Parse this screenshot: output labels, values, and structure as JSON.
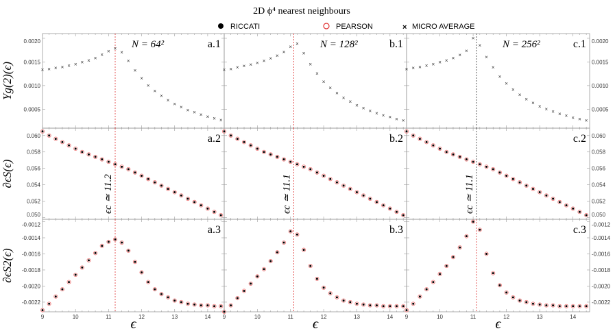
{
  "chart_data": {
    "type": "scatter",
    "title": "2D ϕ⁴ nearest neighbours",
    "legend": [
      {
        "name": "RICCATI",
        "marker": "filled-circle",
        "color": "#000000"
      },
      {
        "name": "PEARSON",
        "marker": "open-circle",
        "color": "#e03030"
      },
      {
        "name": "MICRO AVERAGE",
        "marker": "cross",
        "color": "#000000"
      }
    ],
    "legend_placement": "top",
    "xlabel": "ϵ",
    "xlim": [
      9,
      14.5
    ],
    "xticks": [
      "9",
      "10",
      "11",
      "12",
      "13",
      "14"
    ],
    "x": [
      9.0,
      9.2,
      9.4,
      9.6,
      9.8,
      10.0,
      10.2,
      10.4,
      10.6,
      10.8,
      11.0,
      11.2,
      11.4,
      11.6,
      11.8,
      12.0,
      12.2,
      12.4,
      12.6,
      12.8,
      13.0,
      13.2,
      13.4,
      13.6,
      13.8,
      14.0,
      14.2,
      14.4
    ],
    "columns": [
      {
        "size_label": "N = 64²",
        "critical": 11.2,
        "critical_label": "ϵc ≃ 11.2"
      },
      {
        "size_label": "N = 128²",
        "critical": 11.1,
        "critical_label": "ϵc ≃ 11.1"
      },
      {
        "size_label": "N = 256²",
        "critical": 11.1,
        "critical_label": "ϵc ≃ 11.1"
      }
    ],
    "rows": [
      {
        "ylabel": "Υg(2)(ϵ)",
        "ylim": [
          0.0001,
          0.0021
        ],
        "yticks": [
          "0.0005",
          "0.0010",
          "0.0015",
          "0.0020"
        ],
        "ytick_values": [
          0.0005,
          0.001,
          0.0015,
          0.002
        ],
        "panels": [
          {
            "label": "a.1",
            "micro_average": [
              0.00133,
              0.00135,
              0.00137,
              0.00139,
              0.00142,
              0.00145,
              0.00149,
              0.00153,
              0.00158,
              0.00165,
              0.00172,
              0.00178,
              0.0017,
              0.00152,
              0.00132,
              0.00115,
              0.001,
              0.00088,
              0.00078,
              0.00069,
              0.00061,
              0.00054,
              0.00048,
              0.00043,
              0.00038,
              0.00034,
              0.0003,
              0.00027
            ]
          },
          {
            "label": "b.1",
            "micro_average": [
              0.00133,
              0.00135,
              0.00138,
              0.00141,
              0.00144,
              0.00148,
              0.00152,
              0.00157,
              0.00163,
              0.00171,
              0.00182,
              0.00188,
              0.00168,
              0.00145,
              0.00125,
              0.00108,
              0.00095,
              0.00084,
              0.00074,
              0.00066,
              0.00058,
              0.00052,
              0.00046,
              0.00041,
              0.00037,
              0.00033,
              0.00029,
              0.00026
            ]
          },
          {
            "label": "c.1",
            "micro_average": [
              0.00135,
              0.00137,
              0.00139,
              0.00142,
              0.00145,
              0.00149,
              0.00153,
              0.00158,
              0.00164,
              0.00173,
              0.002,
              0.00185,
              0.0016,
              0.00138,
              0.00119,
              0.00104,
              0.00091,
              0.0008,
              0.00071,
              0.00063,
              0.00056,
              0.0005,
              0.00045,
              0.0004,
              0.00036,
              0.00032,
              0.00029,
              0.00026
            ]
          }
        ]
      },
      {
        "ylabel": "∂ϵS(ϵ)",
        "ylim": [
          0.0498,
          0.0609
        ],
        "yticks": [
          "0.050",
          "0.052",
          "0.054",
          "0.056",
          "0.058",
          "0.060"
        ],
        "ytick_values": [
          0.05,
          0.052,
          0.054,
          0.056,
          0.058,
          0.06
        ],
        "panels": [
          {
            "label": "a.2",
            "riccati": [
              0.0605,
              0.06,
              0.0596,
              0.0592,
              0.0588,
              0.0584,
              0.058,
              0.0577,
              0.0574,
              0.0571,
              0.0568,
              0.0565,
              0.0562,
              0.0559,
              0.0555,
              0.0551,
              0.0547,
              0.0543,
              0.0539,
              0.0535,
              0.0531,
              0.0527,
              0.0523,
              0.0519,
              0.0515,
              0.0511,
              0.0507,
              0.0503
            ]
          },
          {
            "label": "b.2",
            "riccati": [
              0.0605,
              0.06,
              0.0596,
              0.0592,
              0.0588,
              0.0584,
              0.058,
              0.0577,
              0.0574,
              0.0571,
              0.0568,
              0.0565,
              0.0562,
              0.0559,
              0.0555,
              0.0551,
              0.0547,
              0.0543,
              0.0539,
              0.0535,
              0.0531,
              0.0527,
              0.0523,
              0.0519,
              0.0515,
              0.0511,
              0.0507,
              0.0503
            ]
          },
          {
            "label": "c.2",
            "riccati": [
              0.0605,
              0.06,
              0.0596,
              0.0592,
              0.0588,
              0.0584,
              0.058,
              0.0577,
              0.0574,
              0.0571,
              0.0568,
              0.0565,
              0.0562,
              0.0559,
              0.0555,
              0.0551,
              0.0547,
              0.0543,
              0.0539,
              0.0535,
              0.0531,
              0.0527,
              0.0523,
              0.0519,
              0.0515,
              0.0511,
              0.0507,
              0.0503
            ]
          }
        ]
      },
      {
        "ylabel": "∂ϵS2(ϵ)",
        "ylim": [
          -0.00232,
          -0.00117
        ],
        "yticks": [
          "-0.0022",
          "-0.0020",
          "-0.0018",
          "-0.0016",
          "-0.0014",
          "-0.0012"
        ],
        "ytick_values": [
          -0.0022,
          -0.002,
          -0.0018,
          -0.0016,
          -0.0014,
          -0.0012
        ],
        "panels": [
          {
            "label": "a.3",
            "riccati": [
              -0.0023,
              -0.00222,
              -0.00213,
              -0.00204,
              -0.00195,
              -0.00186,
              -0.00177,
              -0.00168,
              -0.00159,
              -0.0015,
              -0.00145,
              -0.00142,
              -0.00146,
              -0.00156,
              -0.0017,
              -0.00183,
              -0.00195,
              -0.00204,
              -0.0021,
              -0.00214,
              -0.00218,
              -0.0022,
              -0.00222,
              -0.00223,
              -0.00224,
              -0.00224,
              -0.00225,
              -0.00225
            ]
          },
          {
            "label": "b.3",
            "riccati": [
              -0.00232,
              -0.00224,
              -0.00215,
              -0.00206,
              -0.00197,
              -0.00188,
              -0.00179,
              -0.00169,
              -0.00158,
              -0.00146,
              -0.00132,
              -0.00136,
              -0.00155,
              -0.00175,
              -0.00191,
              -0.00202,
              -0.00209,
              -0.00214,
              -0.00218,
              -0.0022,
              -0.00222,
              -0.00223,
              -0.00224,
              -0.00224,
              -0.00225,
              -0.00225,
              -0.00225,
              -0.00225
            ]
          },
          {
            "label": "c.3",
            "riccati": [
              -0.0023,
              -0.00222,
              -0.00213,
              -0.00204,
              -0.00195,
              -0.00185,
              -0.00175,
              -0.00164,
              -0.00152,
              -0.00138,
              -0.0012,
              -0.0013,
              -0.0016,
              -0.00184,
              -0.00199,
              -0.00208,
              -0.00214,
              -0.00218,
              -0.0022,
              -0.00222,
              -0.00223,
              -0.00224,
              -0.00224,
              -0.00225,
              -0.00225,
              -0.00225,
              -0.00225,
              -0.00225
            ]
          }
        ]
      }
    ]
  }
}
